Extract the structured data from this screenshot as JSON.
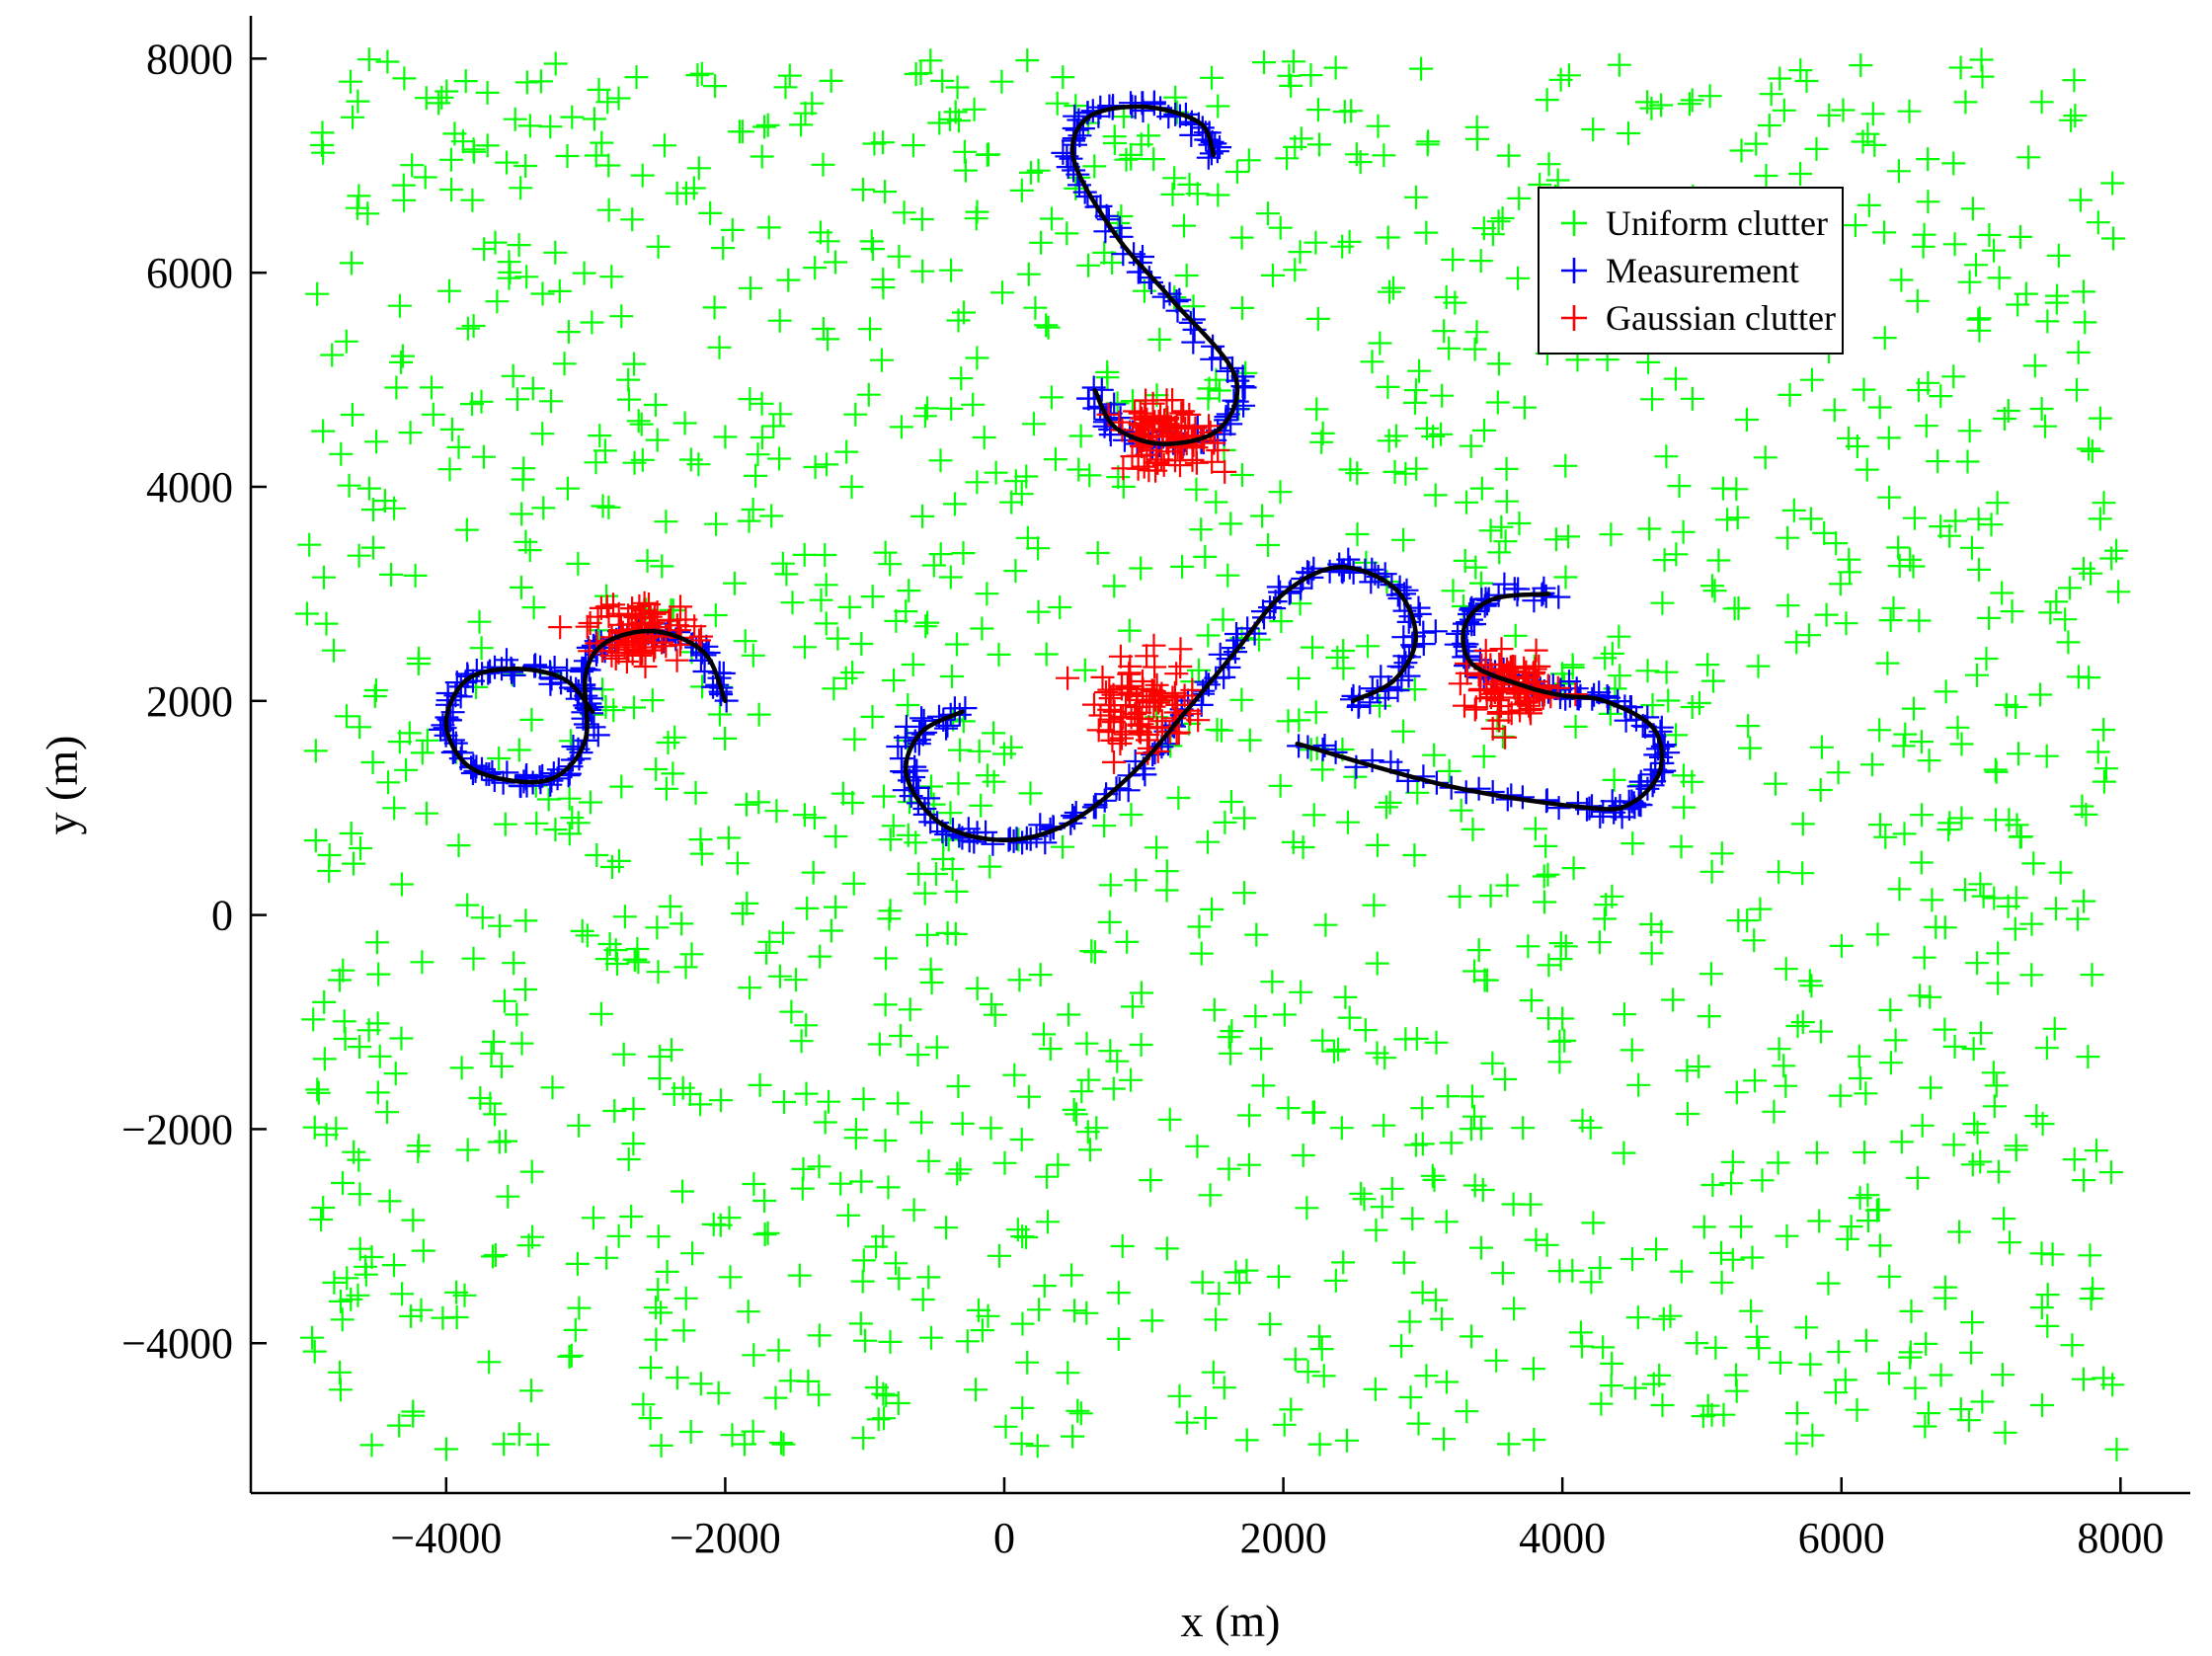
{
  "chart_data": {
    "type": "scatter",
    "xlabel": "x (m)",
    "ylabel": "y (m)",
    "xlim": [
      -5400,
      8500
    ],
    "ylim": [
      -5400,
      8400
    ],
    "xticks": [
      -4000,
      -2000,
      0,
      2000,
      4000,
      6000,
      8000
    ],
    "yticks": [
      -4000,
      -2000,
      0,
      2000,
      4000,
      6000,
      8000
    ],
    "xtick_labels": [
      "−4000",
      "−2000",
      "0",
      "2000",
      "4000",
      "6000",
      "8000"
    ],
    "ytick_labels": [
      "−4000",
      "−2000",
      "0",
      "2000",
      "4000",
      "6000",
      "8000"
    ],
    "grid": false,
    "legend_position": "top-right",
    "legend": [
      {
        "label": "Uniform clutter",
        "color": "#00ff00",
        "marker": "+"
      },
      {
        "label": "Measurement",
        "color": "#0000ff",
        "marker": "+"
      },
      {
        "label": "Gaussian clutter",
        "color": "#ff0000",
        "marker": "+"
      }
    ],
    "track_color": "#000000",
    "uniform_clutter": {
      "color": "#00ff00",
      "x_range": [
        -5000,
        8000
      ],
      "y_range": [
        -5000,
        8000
      ],
      "approx_count": 1600
    },
    "gaussian_clutter": {
      "color": "#ff0000",
      "clusters": [
        {
          "center": [
            1150,
            4450
          ],
          "spread": [
            180,
            150
          ],
          "count": 90
        },
        {
          "center": [
            -2600,
            2650
          ],
          "spread": [
            190,
            150
          ],
          "count": 90
        },
        {
          "center": [
            1000,
            1950
          ],
          "spread": [
            180,
            220
          ],
          "count": 90
        },
        {
          "center": [
            3650,
            2100
          ],
          "spread": [
            180,
            150
          ],
          "count": 90
        }
      ]
    },
    "tracks": [
      {
        "color": "#000000",
        "points": [
          [
            1500,
            7100
          ],
          [
            1400,
            7400
          ],
          [
            1000,
            7550
          ],
          [
            600,
            7450
          ],
          [
            500,
            7050
          ],
          [
            800,
            6350
          ],
          [
            1200,
            5750
          ],
          [
            1650,
            5050
          ],
          [
            1550,
            4550
          ],
          [
            1150,
            4400
          ],
          [
            800,
            4550
          ],
          [
            650,
            4900
          ]
        ]
      },
      {
        "color": "#000000",
        "points": [
          [
            -2000,
            2000
          ],
          [
            -2150,
            2450
          ],
          [
            -2500,
            2650
          ],
          [
            -2850,
            2550
          ],
          [
            -3000,
            2250
          ],
          [
            -3000,
            1650
          ],
          [
            -3200,
            1300
          ],
          [
            -3500,
            1250
          ],
          [
            -3850,
            1400
          ],
          [
            -4000,
            1800
          ],
          [
            -3850,
            2200
          ],
          [
            -3500,
            2300
          ],
          [
            -3150,
            2200
          ],
          [
            -2950,
            1900
          ]
        ]
      },
      {
        "color": "#000000",
        "points": [
          [
            -300,
            1900
          ],
          [
            -600,
            1700
          ],
          [
            -700,
            1300
          ],
          [
            -450,
            850
          ],
          [
            0,
            700
          ],
          [
            450,
            850
          ],
          [
            900,
            1300
          ],
          [
            1300,
            1900
          ],
          [
            1650,
            2450
          ],
          [
            2000,
            3000
          ],
          [
            2400,
            3250
          ],
          [
            2800,
            3050
          ],
          [
            2950,
            2600
          ],
          [
            2800,
            2200
          ],
          [
            2500,
            2000
          ]
        ]
      },
      {
        "color": "#000000",
        "points": [
          [
            3900,
            3000
          ],
          [
            3500,
            2950
          ],
          [
            3300,
            2700
          ],
          [
            3350,
            2350
          ],
          [
            3700,
            2150
          ],
          [
            4000,
            2050
          ],
          [
            4300,
            2000
          ],
          [
            4650,
            1750
          ],
          [
            4700,
            1350
          ],
          [
            4500,
            1050
          ],
          [
            4200,
            1000
          ],
          [
            3200,
            1200
          ],
          [
            2100,
            1600
          ]
        ]
      }
    ]
  }
}
